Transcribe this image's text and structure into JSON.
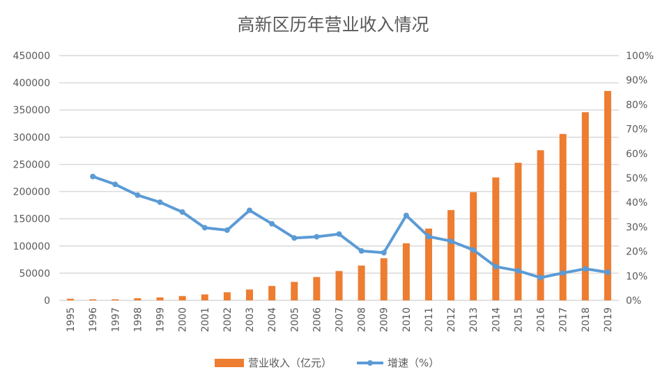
{
  "chart_data": {
    "type": "bar+line",
    "title": "高新区历年营业收入情况",
    "categories": [
      "1995",
      "1996",
      "1997",
      "1998",
      "1999",
      "2000",
      "2001",
      "2002",
      "2003",
      "2004",
      "2005",
      "2006",
      "2007",
      "2008",
      "2009",
      "2010",
      "2011",
      "2012",
      "2013",
      "2014",
      "2015",
      "2016",
      "2017",
      "2018",
      "2019"
    ],
    "series": [
      {
        "name": "营业收入（亿元）",
        "type": "bar",
        "axis": "left",
        "color": "#ED7D31",
        "values": [
          3000,
          2000,
          2000,
          4000,
          5500,
          8000,
          11000,
          15000,
          20000,
          26500,
          34000,
          43000,
          54000,
          64000,
          77500,
          105000,
          132000,
          166000,
          199000,
          226000,
          253000,
          276000,
          306000,
          346000,
          385000
        ]
      },
      {
        "name": "增速（%）",
        "type": "line",
        "axis": "right",
        "color": "#5B9BD5",
        "values": [
          null,
          50.6,
          47.4,
          43.0,
          40.1,
          36.1,
          29.7,
          28.7,
          36.8,
          31.3,
          25.5,
          26.0,
          27.1,
          20.2,
          19.5,
          34.7,
          26.1,
          24.2,
          20.6,
          13.8,
          12.1,
          9.3,
          11.2,
          12.9,
          11.5
        ]
      }
    ],
    "left_axis": {
      "range": [
        0,
        450000
      ],
      "ticks": [
        "0",
        "50000",
        "100000",
        "150000",
        "200000",
        "250000",
        "300000",
        "350000",
        "400000",
        "450000"
      ]
    },
    "right_axis": {
      "range": [
        0,
        100
      ],
      "ticks": [
        "0%",
        "10%",
        "20%",
        "30%",
        "40%",
        "50%",
        "60%",
        "70%",
        "80%",
        "90%",
        "100%"
      ]
    },
    "grid": true,
    "legend_position": "bottom"
  }
}
